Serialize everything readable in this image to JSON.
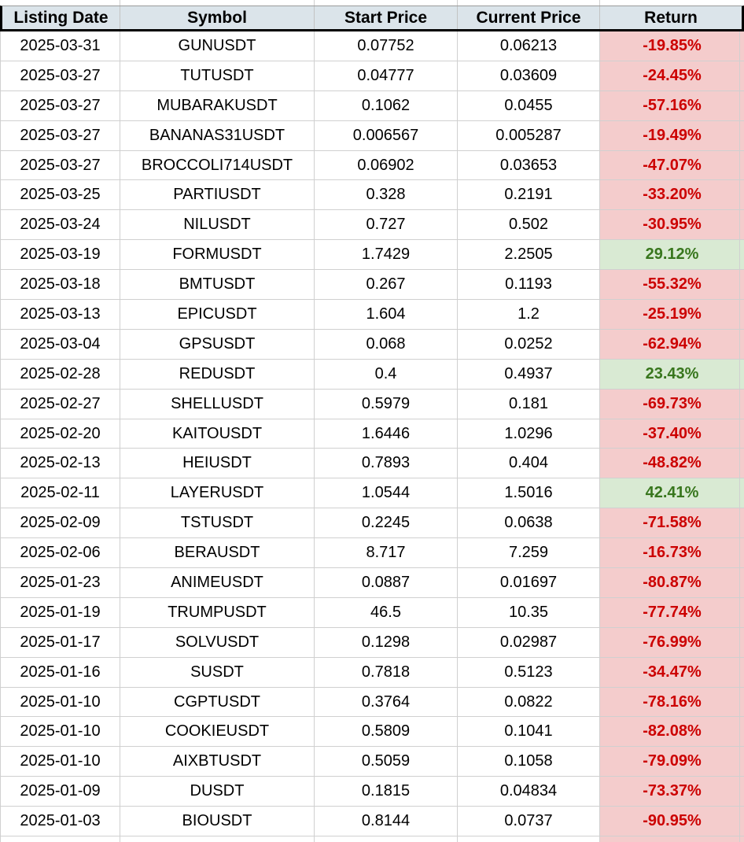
{
  "chart_data": {
    "type": "table",
    "columns": [
      "Listing Date",
      "Symbol",
      "Start Price",
      "Current Price",
      "Return"
    ],
    "rows": [
      [
        "2025-03-31",
        "GUNUSDT",
        "0.07752",
        "0.06213",
        "-19.85%"
      ],
      [
        "2025-03-27",
        "TUTUSDT",
        "0.04777",
        "0.03609",
        "-24.45%"
      ],
      [
        "2025-03-27",
        "MUBARAKUSDT",
        "0.1062",
        "0.0455",
        "-57.16%"
      ],
      [
        "2025-03-27",
        "BANANAS31USDT",
        "0.006567",
        "0.005287",
        "-19.49%"
      ],
      [
        "2025-03-27",
        "BROCCOLI714USDT",
        "0.06902",
        "0.03653",
        "-47.07%"
      ],
      [
        "2025-03-25",
        "PARTIUSDT",
        "0.328",
        "0.2191",
        "-33.20%"
      ],
      [
        "2025-03-24",
        "NILUSDT",
        "0.727",
        "0.502",
        "-30.95%"
      ],
      [
        "2025-03-19",
        "FORMUSDT",
        "1.7429",
        "2.2505",
        "29.12%"
      ],
      [
        "2025-03-18",
        "BMTUSDT",
        "0.267",
        "0.1193",
        "-55.32%"
      ],
      [
        "2025-03-13",
        "EPICUSDT",
        "1.604",
        "1.2",
        "-25.19%"
      ],
      [
        "2025-03-04",
        "GPSUSDT",
        "0.068",
        "0.0252",
        "-62.94%"
      ],
      [
        "2025-02-28",
        "REDUSDT",
        "0.4",
        "0.4937",
        "23.43%"
      ],
      [
        "2025-02-27",
        "SHELLUSDT",
        "0.5979",
        "0.181",
        "-69.73%"
      ],
      [
        "2025-02-20",
        "KAITOUSDT",
        "1.6446",
        "1.0296",
        "-37.40%"
      ],
      [
        "2025-02-13",
        "HEIUSDT",
        "0.7893",
        "0.404",
        "-48.82%"
      ],
      [
        "2025-02-11",
        "LAYERUSDT",
        "1.0544",
        "1.5016",
        "42.41%"
      ],
      [
        "2025-02-09",
        "TSTUSDT",
        "0.2245",
        "0.0638",
        "-71.58%"
      ],
      [
        "2025-02-06",
        "BERAUSDT",
        "8.717",
        "7.259",
        "-16.73%"
      ],
      [
        "2025-01-23",
        "ANIMEUSDT",
        "0.0887",
        "0.01697",
        "-80.87%"
      ],
      [
        "2025-01-19",
        "TRUMPUSDT",
        "46.5",
        "10.35",
        "-77.74%"
      ],
      [
        "2025-01-17",
        "SOLVUSDT",
        "0.1298",
        "0.02987",
        "-76.99%"
      ],
      [
        "2025-01-16",
        "SUSDT",
        "0.7818",
        "0.5123",
        "-34.47%"
      ],
      [
        "2025-01-10",
        "CGPTUSDT",
        "0.3764",
        "0.0822",
        "-78.16%"
      ],
      [
        "2025-01-10",
        "COOKIEUSDT",
        "0.5809",
        "0.1041",
        "-82.08%"
      ],
      [
        "2025-01-10",
        "AIXBTUSDT",
        "0.5059",
        "0.1058",
        "-79.09%"
      ],
      [
        "2025-01-09",
        "DUSDT",
        "0.1815",
        "0.04834",
        "-73.37%"
      ],
      [
        "2025-01-03",
        "BIOUSDT",
        "0.8144",
        "0.0737",
        "-90.95%"
      ]
    ]
  },
  "colors": {
    "header_bg": "#dbe4ea",
    "gridline": "#d0d0d0",
    "negative_bg": "#f4cccc",
    "negative_text": "#cc0000",
    "positive_bg": "#d9ead3",
    "positive_text": "#38761d",
    "header_text": "#000000",
    "body_text": "#000000",
    "border_black": "#000000"
  }
}
